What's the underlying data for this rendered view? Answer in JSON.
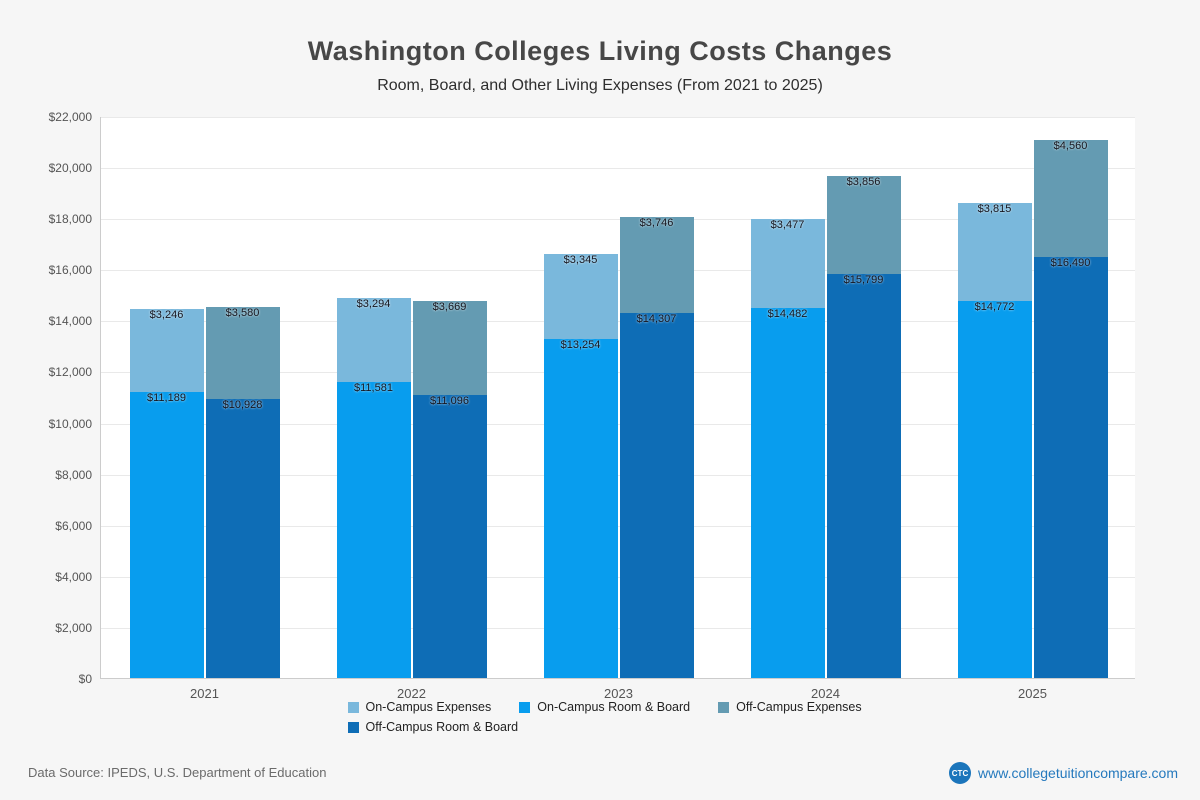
{
  "page": {
    "title": "Washington Colleges  Living Costs Changes",
    "subtitle": "Room, Board, and Other Living Expenses (From 2021 to 2025)",
    "footer_source": "Data Source: IPEDS, U.S. Department of Education",
    "footer_site": "www.collegetuitioncompare.com",
    "logo_text": "CTC"
  },
  "chart_data": {
    "type": "bar",
    "stacked": true,
    "grid": true,
    "title": "Washington Colleges  Living Costs Changes",
    "subtitle": "Room, Board, and Other Living Expenses (From 2021 to 2025)",
    "categories": [
      "2021",
      "2022",
      "2023",
      "2024",
      "2025"
    ],
    "ylim": [
      0,
      22000
    ],
    "ytick_step": 2000,
    "series": [
      {
        "name": "On-Campus Room & Board",
        "bar": "on",
        "color": "#089dee",
        "values": [
          11189,
          11581,
          13254,
          14482,
          14772
        ]
      },
      {
        "name": "On-Campus Expenses",
        "bar": "on",
        "color": "#7ab8dc",
        "values": [
          3246,
          3294,
          3345,
          3477,
          3815
        ]
      },
      {
        "name": "Off-Campus Room & Board",
        "bar": "off",
        "color": "#0e6db6",
        "values": [
          10928,
          11096,
          14307,
          15799,
          16490
        ]
      },
      {
        "name": "Off-Campus Expenses",
        "bar": "off",
        "color": "#649bb2",
        "values": [
          3580,
          3669,
          3746,
          3856,
          4560
        ]
      }
    ],
    "legend": [
      {
        "label": "On-Campus Expenses",
        "color": "#7ab8dc"
      },
      {
        "label": "On-Campus Room & Board",
        "color": "#089dee"
      },
      {
        "label": "Off-Campus Expenses",
        "color": "#649bb2"
      },
      {
        "label": "Off-Campus Room & Board",
        "color": "#0e6db6"
      }
    ],
    "legend_position": "bottom"
  }
}
